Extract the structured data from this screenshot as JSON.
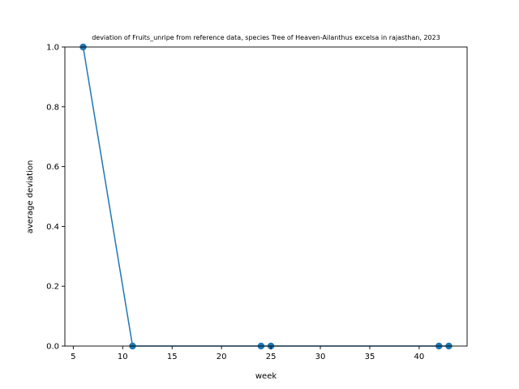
{
  "chart_data": {
    "type": "line",
    "title": "deviation of Fruits_unripe from reference data, species Tree of Heaven-Ailanthus excelsa in rajasthan, 2023",
    "xlabel": "week",
    "ylabel": "average deviation",
    "xlim": [
      4.15,
      44.85
    ],
    "ylim": [
      0,
      1.0
    ],
    "xticks": [
      5,
      10,
      15,
      20,
      25,
      30,
      35,
      40
    ],
    "yticks": [
      0.0,
      0.2,
      0.4,
      0.6,
      0.8,
      1.0
    ],
    "xtick_labels": [
      "5",
      "10",
      "15",
      "20",
      "25",
      "30",
      "35",
      "40"
    ],
    "ytick_labels": [
      "0.0",
      "0.2",
      "0.4",
      "0.6",
      "0.8",
      "1.0"
    ],
    "grid": false,
    "series": [
      {
        "color": "#1f77b4",
        "marker": "circle",
        "x": [
          6,
          11,
          24,
          25,
          42,
          43
        ],
        "y": [
          1.0,
          0.0,
          0.0,
          0.0,
          0.0,
          0.0
        ]
      }
    ]
  }
}
